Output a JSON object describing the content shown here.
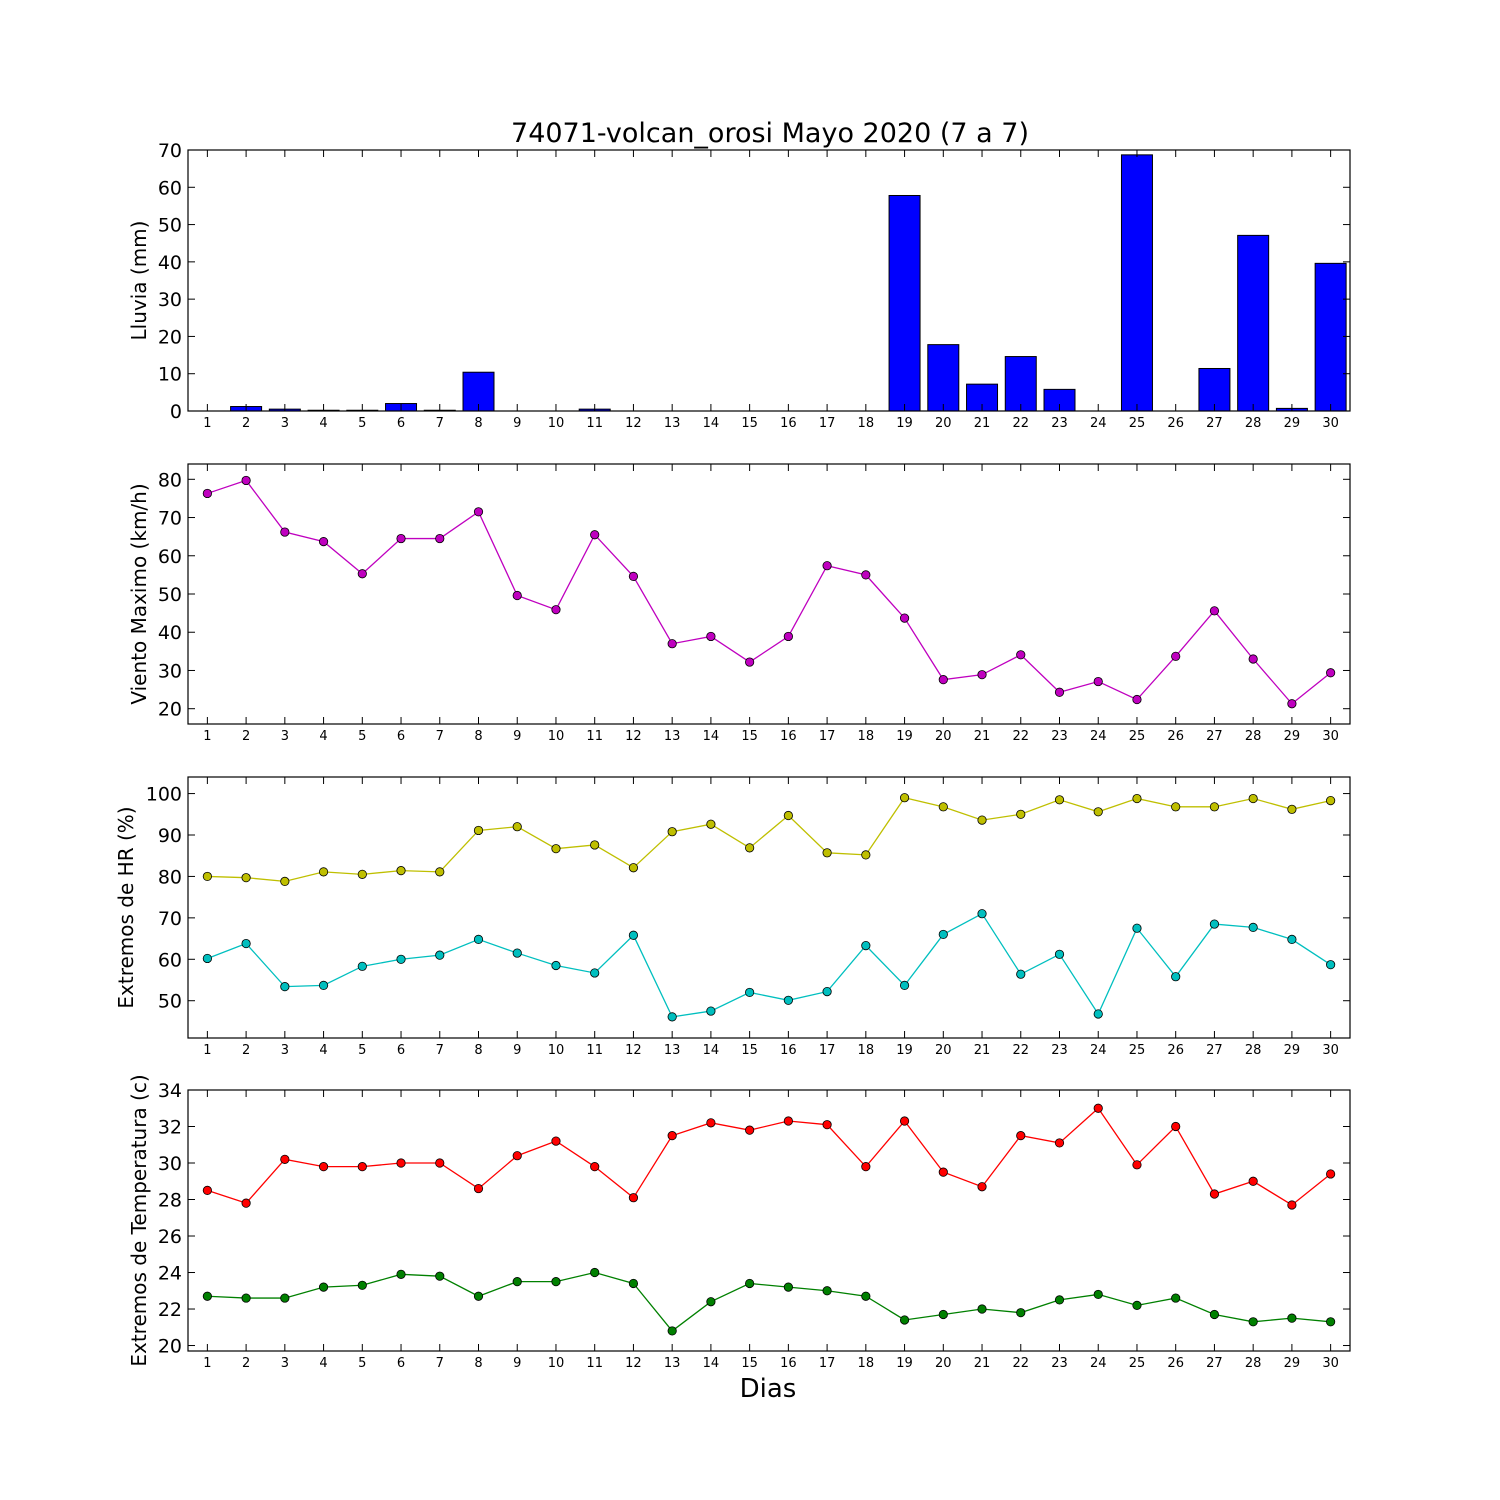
{
  "title": "74071-volcan_orosi Mayo 2020  (7 a 7)",
  "xlabel": "Dias",
  "chart_data": [
    {
      "type": "bar",
      "name": "rain",
      "ylabel": "Lluvia (mm)",
      "categories": [
        1,
        2,
        3,
        4,
        5,
        6,
        7,
        8,
        9,
        10,
        11,
        12,
        13,
        14,
        15,
        16,
        17,
        18,
        19,
        20,
        21,
        22,
        23,
        24,
        25,
        26,
        27,
        28,
        29,
        30
      ],
      "ylim": [
        0,
        70
      ],
      "yticks": [
        0,
        10,
        20,
        30,
        40,
        50,
        60,
        70
      ],
      "color": "#0000ff",
      "series": [
        {
          "values": [
            0,
            1.2,
            0.5,
            0.2,
            0.2,
            2.0,
            0.2,
            10.4,
            0,
            0,
            0.5,
            0,
            0,
            0,
            0,
            0,
            0,
            0,
            57.8,
            17.8,
            7.2,
            14.6,
            5.8,
            0,
            68.7,
            0,
            11.4,
            47.1,
            0.7,
            39.6
          ]
        }
      ]
    },
    {
      "type": "line",
      "name": "wind",
      "ylabel": "Viento Maximo (km/h)",
      "categories": [
        1,
        2,
        3,
        4,
        5,
        6,
        7,
        8,
        9,
        10,
        11,
        12,
        13,
        14,
        15,
        16,
        17,
        18,
        19,
        20,
        21,
        22,
        23,
        24,
        25,
        26,
        27,
        28,
        29,
        30
      ],
      "ylim": [
        16,
        84
      ],
      "yticks": [
        20,
        30,
        40,
        50,
        60,
        70,
        80
      ],
      "series": [
        {
          "color": "#bf00bf",
          "values": [
            76.3,
            79.7,
            66.2,
            63.7,
            55.3,
            64.5,
            64.5,
            71.5,
            49.6,
            45.9,
            65.5,
            54.6,
            37.0,
            38.9,
            32.2,
            38.9,
            57.4,
            55.0,
            43.7,
            27.6,
            28.9,
            34.1,
            24.3,
            27.1,
            22.4,
            33.7,
            45.6,
            33.0,
            21.3,
            29.4
          ]
        }
      ]
    },
    {
      "type": "line",
      "name": "humidity",
      "ylabel": "Extremos de HR (%)",
      "categories": [
        1,
        2,
        3,
        4,
        5,
        6,
        7,
        8,
        9,
        10,
        11,
        12,
        13,
        14,
        15,
        16,
        17,
        18,
        19,
        20,
        21,
        22,
        23,
        24,
        25,
        26,
        27,
        28,
        29,
        30
      ],
      "ylim": [
        41,
        104
      ],
      "yticks": [
        50,
        60,
        70,
        80,
        90,
        100
      ],
      "series": [
        {
          "color": "#bfbf00",
          "values": [
            80.0,
            79.7,
            78.8,
            81.1,
            80.5,
            81.4,
            81.1,
            91.1,
            92.0,
            86.7,
            87.6,
            82.1,
            90.8,
            92.6,
            86.9,
            94.7,
            85.7,
            85.2,
            99.0,
            96.8,
            93.6,
            95.0,
            98.5,
            95.6,
            98.8,
            96.8,
            96.8,
            98.8,
            96.2,
            98.3
          ]
        },
        {
          "color": "#00bfbf",
          "values": [
            60.2,
            63.8,
            53.4,
            53.7,
            58.3,
            60.0,
            61.0,
            64.8,
            61.5,
            58.5,
            56.7,
            65.8,
            46.1,
            47.5,
            52.0,
            50.1,
            52.2,
            63.3,
            53.7,
            66.0,
            71.0,
            56.4,
            61.2,
            46.8,
            67.5,
            55.8,
            68.5,
            67.7,
            64.8,
            58.7
          ]
        }
      ]
    },
    {
      "type": "line",
      "name": "temperature",
      "ylabel": "Extremos de Temperatura (c)",
      "categories": [
        1,
        2,
        3,
        4,
        5,
        6,
        7,
        8,
        9,
        10,
        11,
        12,
        13,
        14,
        15,
        16,
        17,
        18,
        19,
        20,
        21,
        22,
        23,
        24,
        25,
        26,
        27,
        28,
        29,
        30
      ],
      "ylim": [
        19.7,
        34
      ],
      "yticks": [
        20,
        22,
        24,
        26,
        28,
        30,
        32,
        34
      ],
      "series": [
        {
          "color": "#ff0000",
          "values": [
            28.5,
            27.8,
            30.2,
            29.8,
            29.8,
            30.0,
            30.0,
            28.6,
            30.4,
            31.2,
            29.8,
            28.1,
            31.5,
            32.2,
            31.8,
            32.3,
            32.1,
            29.8,
            32.3,
            29.5,
            28.7,
            31.5,
            31.1,
            33.0,
            29.9,
            32.0,
            28.3,
            29.0,
            27.7,
            29.4
          ]
        },
        {
          "color": "#008000",
          "values": [
            22.7,
            22.6,
            22.6,
            23.2,
            23.3,
            23.9,
            23.8,
            22.7,
            23.5,
            23.5,
            24.0,
            23.4,
            20.8,
            22.4,
            23.4,
            23.2,
            23.0,
            22.7,
            21.4,
            21.7,
            22.0,
            21.8,
            22.5,
            22.8,
            22.2,
            22.6,
            21.7,
            21.3,
            21.5,
            21.3
          ]
        }
      ]
    }
  ]
}
